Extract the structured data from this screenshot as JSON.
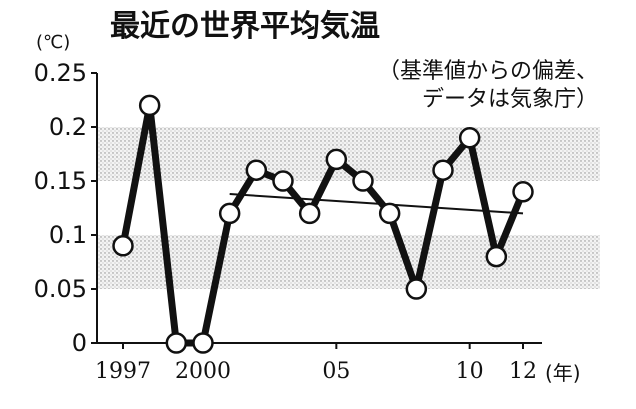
{
  "chart_data": {
    "type": "line",
    "title": "最近の世界平均気温",
    "subtitle_lines": [
      "（基準値からの偏差、",
      "データは気象庁）"
    ],
    "y_unit": "(℃)",
    "x_unit": "(年)",
    "ylim": [
      0,
      0.25
    ],
    "y_ticks": [
      {
        "value": 0,
        "label": "0"
      },
      {
        "value": 0.05,
        "label": "0.05"
      },
      {
        "value": 0.1,
        "label": "0.1"
      },
      {
        "value": 0.15,
        "label": "0.15"
      },
      {
        "value": 0.2,
        "label": "0.2"
      },
      {
        "value": 0.25,
        "label": "0.25"
      }
    ],
    "xlim": [
      1997,
      2012
    ],
    "x_ticks": [
      {
        "value": 1997,
        "label": "1997"
      },
      {
        "value": 2000,
        "label": "2000"
      },
      {
        "value": 2005,
        "label": "05"
      },
      {
        "value": 2010,
        "label": "10"
      },
      {
        "value": 2012,
        "label": "12"
      }
    ],
    "series": [
      {
        "x": [
          1997,
          1998,
          1999,
          2000,
          2001,
          2002,
          2003,
          2004,
          2005,
          2006,
          2007,
          2008,
          2009,
          2010,
          2011,
          2012
        ],
        "y": [
          0.09,
          0.22,
          0.0,
          0.0,
          0.12,
          0.16,
          0.15,
          0.12,
          0.17,
          0.15,
          0.12,
          0.05,
          0.16,
          0.19,
          0.08,
          0.14
        ]
      }
    ],
    "trend": {
      "x": [
        2001,
        2012
      ],
      "y": [
        0.138,
        0.12
      ]
    },
    "shaded_bands": [
      [
        0.05,
        0.1
      ],
      [
        0.15,
        0.2
      ]
    ],
    "grid": false
  }
}
